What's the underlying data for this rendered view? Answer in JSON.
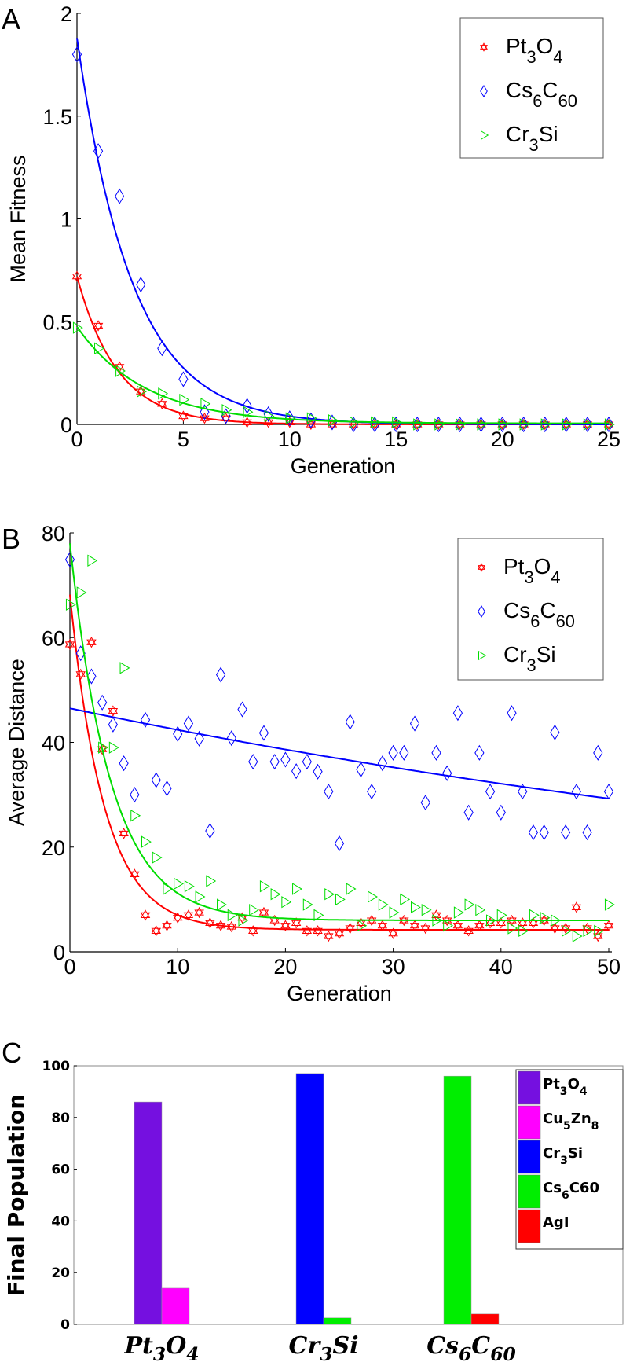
{
  "chart_data": [
    {
      "type": "scatter",
      "panel_label": "A",
      "xlabel": "Generation",
      "ylabel": "Mean Fitness",
      "xlim": [
        0,
        25
      ],
      "ylim": [
        0,
        2
      ],
      "xticks": [
        "0",
        "5",
        "10",
        "15",
        "20",
        "25"
      ],
      "yticks": [
        "0",
        "0.5",
        "1",
        "1.5",
        "2"
      ],
      "legend_position": "top-right",
      "series": [
        {
          "name": "Pt3O4",
          "legend": [
            {
              "t": "Pt"
            },
            {
              "t": "3",
              "sub": true
            },
            {
              "t": "O"
            },
            {
              "t": "4",
              "sub": true
            }
          ],
          "color": "#ff0000",
          "marker": "hexagram",
          "x": [
            0,
            1,
            2,
            3,
            4,
            5,
            6,
            7,
            8,
            9,
            10,
            11,
            12,
            13,
            14,
            15,
            16,
            17,
            18,
            19,
            20,
            21,
            22,
            23,
            24,
            25
          ],
          "y": [
            0.72,
            0.48,
            0.28,
            0.16,
            0.1,
            0.04,
            0.03,
            0.03,
            0.01,
            0.01,
            0.01,
            0,
            0,
            0,
            0,
            0,
            0,
            0,
            0,
            0,
            0,
            0,
            0,
            0,
            0,
            0
          ],
          "fit": {
            "a": 0.72,
            "tau": 1.9,
            "c": 0
          }
        },
        {
          "name": "Cs6C60",
          "legend": [
            {
              "t": "Cs"
            },
            {
              "t": "6",
              "sub": true
            },
            {
              "t": "C"
            },
            {
              "t": "60",
              "sub": true
            }
          ],
          "color": "#0000ff",
          "marker": "diamond",
          "x": [
            0,
            1,
            2,
            3,
            4,
            5,
            6,
            7,
            8,
            9,
            10,
            11,
            12,
            13,
            14,
            15,
            16,
            17,
            18,
            19,
            20,
            21,
            22,
            23,
            24,
            25
          ],
          "y": [
            1.8,
            1.33,
            1.11,
            0.68,
            0.37,
            0.22,
            0.06,
            0.04,
            0.09,
            0.05,
            0.03,
            0.02,
            0.01,
            0,
            0,
            0,
            0,
            0,
            0,
            0,
            0,
            0,
            0,
            0,
            0,
            0
          ],
          "fit": {
            "a": 1.88,
            "tau": 2.6,
            "c": 0
          }
        },
        {
          "name": "Cr3Si",
          "legend": [
            {
              "t": "Cr"
            },
            {
              "t": "3",
              "sub": true
            },
            {
              "t": "Si"
            }
          ],
          "color": "#00dd00",
          "marker": "triangle-right",
          "x": [
            0,
            1,
            2,
            3,
            4,
            5,
            6,
            7,
            8,
            9,
            10,
            11,
            12,
            13,
            14,
            15,
            16,
            17,
            18,
            19,
            20,
            21,
            22,
            23,
            24,
            25
          ],
          "y": [
            0.47,
            0.37,
            0.26,
            0.16,
            0.15,
            0.12,
            0.1,
            0.07,
            0.06,
            0.04,
            0.03,
            0.03,
            0.02,
            0.01,
            0.01,
            0.01,
            0,
            0,
            0,
            0,
            0,
            0,
            0,
            0,
            0,
            0
          ],
          "fit": {
            "a": 0.47,
            "tau": 3.2,
            "c": 0.005
          }
        }
      ]
    },
    {
      "type": "scatter",
      "panel_label": "B",
      "xlabel": "Generation",
      "ylabel": "Average Distance",
      "xlim": [
        0,
        50
      ],
      "ylim": [
        0,
        80
      ],
      "xticks": [
        "0",
        "10",
        "20",
        "30",
        "40",
        "50"
      ],
      "yticks": [
        "0",
        "20",
        "40",
        "60",
        "80"
      ],
      "legend_position": "top-right",
      "series": [
        {
          "name": "Pt3O4",
          "legend": [
            {
              "t": "Pt"
            },
            {
              "t": "3",
              "sub": true
            },
            {
              "t": "O"
            },
            {
              "t": "4",
              "sub": true
            }
          ],
          "color": "#ff0000",
          "marker": "hexagram",
          "y": [
            58.7,
            53,
            59.1,
            38.7,
            46,
            22.6,
            14.8,
            7,
            4,
            5,
            6.5,
            7,
            7.5,
            5.5,
            5,
            4.8,
            6.5,
            4,
            7.5,
            6,
            5,
            5.5,
            4,
            4,
            3,
            3.5,
            4.5,
            5.5,
            6,
            5,
            3.5,
            6,
            5,
            4.5,
            7,
            6,
            5,
            4,
            5,
            5.5,
            5.5,
            6,
            5.5,
            5.5,
            6,
            4.5,
            4.5,
            8.5,
            4.5,
            3,
            5
          ],
          "fit": {
            "a": 64,
            "tau": 3.2,
            "c": 4.2
          }
        },
        {
          "name": "Cs6C60",
          "legend": [
            {
              "t": "Cs"
            },
            {
              "t": "6",
              "sub": true
            },
            {
              "t": "C"
            },
            {
              "t": "60",
              "sub": true
            }
          ],
          "color": "#0000ff",
          "marker": "diamond",
          "y": [
            74.9,
            57,
            52.6,
            47.6,
            43.4,
            36,
            30,
            44.3,
            32.8,
            31.2,
            41.6,
            43.6,
            40.7,
            23.1,
            52.9,
            40.8,
            46.3,
            36.3,
            41.8,
            36.3,
            36.7,
            34.5,
            36.3,
            34.4,
            30.6,
            20.7,
            43.9,
            34.8,
            30.6,
            36,
            38,
            38,
            43.6,
            28.5,
            38,
            34.1,
            45.6,
            26.6,
            38,
            30.6,
            26.6,
            45.6,
            30.6,
            22.8,
            22.8,
            41.9,
            22.8,
            30.6,
            22.8,
            38,
            30.6
          ],
          "fit": {
            "a": 46.5,
            "tau": 108,
            "c": 0
          }
        },
        {
          "name": "Cr3Si",
          "legend": [
            {
              "t": "Cr"
            },
            {
              "t": "3",
              "sub": true
            },
            {
              "t": "Si"
            }
          ],
          "color": "#00dd00",
          "marker": "triangle-right",
          "y": [
            66.3,
            68.6,
            74.7,
            39,
            39,
            54.2,
            26,
            21,
            18,
            12,
            13,
            12.5,
            10.5,
            13.5,
            9,
            7,
            6,
            8,
            12.5,
            11,
            9.5,
            12,
            9,
            7,
            11,
            10,
            12,
            5,
            10.5,
            9,
            7.5,
            10,
            8.5,
            8,
            6,
            5,
            7.5,
            9,
            8,
            6,
            7,
            4.5,
            4,
            7,
            6.5,
            6,
            4,
            3,
            4,
            4,
            9
          ],
          "fit": {
            "a": 72,
            "tau": 3.8,
            "c": 6
          }
        }
      ]
    },
    {
      "type": "bar",
      "panel_label": "C",
      "ylabel": "Final Population",
      "ylim": [
        0,
        100
      ],
      "yticks": [
        "0",
        "20",
        "40",
        "60",
        "80",
        "100"
      ],
      "legend_position": "top-right",
      "categories": [
        {
          "name": "Pt3O4",
          "label": [
            {
              "t": "Pt"
            },
            {
              "t": "3",
              "sub": true
            },
            {
              "t": "O"
            },
            {
              "t": "4",
              "sub": true
            }
          ]
        },
        {
          "name": "Cr3Si",
          "label": [
            {
              "t": "Cr"
            },
            {
              "t": "3",
              "sub": true
            },
            {
              "t": "Si"
            }
          ]
        },
        {
          "name": "Cs6C60",
          "label": [
            {
              "t": "Cs"
            },
            {
              "t": "6",
              "sub": true
            },
            {
              "t": "C"
            },
            {
              "t": "60",
              "sub": true
            }
          ]
        }
      ],
      "legend": [
        {
          "name": "Pt3O4",
          "color": "#7510e0",
          "label": [
            {
              "t": "Pt"
            },
            {
              "t": "3",
              "sub": true
            },
            {
              "t": "O"
            },
            {
              "t": "4",
              "sub": true
            }
          ]
        },
        {
          "name": "Cu5Zn8",
          "color": "#ff00ff",
          "label": [
            {
              "t": "Cu"
            },
            {
              "t": "5",
              "sub": true
            },
            {
              "t": "Zn"
            },
            {
              "t": "8",
              "sub": true
            }
          ]
        },
        {
          "name": "Cr3Si",
          "color": "#0000ff",
          "label": [
            {
              "t": "Cr"
            },
            {
              "t": "3",
              "sub": true
            },
            {
              "t": "Si"
            }
          ]
        },
        {
          "name": "Cs6C60",
          "color": "#00ee00",
          "label": [
            {
              "t": "Cs"
            },
            {
              "t": "6",
              "sub": true
            },
            {
              "t": "C60"
            }
          ]
        },
        {
          "name": "AgI",
          "color": "#ff0000",
          "label": [
            {
              "t": "AgI"
            }
          ]
        }
      ],
      "bars": [
        {
          "category": 0,
          "series": "Pt3O4",
          "color": "#7510e0",
          "value": 86
        },
        {
          "category": 0,
          "series": "Cu5Zn8",
          "color": "#ff00ff",
          "value": 14
        },
        {
          "category": 1,
          "series": "Cr3Si",
          "color": "#0000ff",
          "value": 97
        },
        {
          "category": 1,
          "series": "Cs6C60",
          "color": "#00ee00",
          "value": 2.5
        },
        {
          "category": 2,
          "series": "Cs6C60",
          "color": "#00ee00",
          "value": 96
        },
        {
          "category": 2,
          "series": "AgI",
          "color": "#ff0000",
          "value": 4
        }
      ]
    }
  ]
}
